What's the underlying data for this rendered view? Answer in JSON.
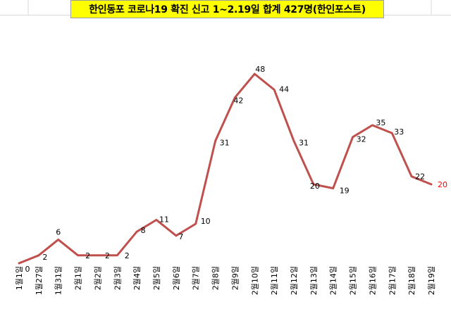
{
  "chart_data": {
    "type": "line",
    "title": "한인동포 코로나19 확진 신고 1~2.19일 합계 427명(한인포스트)",
    "xlabel": "",
    "ylabel": "",
    "ylim": [
      0,
      52
    ],
    "grid": false,
    "legend": "none",
    "categories": [
      "1월1일",
      "1월27일",
      "1월31일",
      "2월1일",
      "2월2일",
      "2월3일",
      "2월4일",
      "2월5일",
      "2월6일",
      "2월7일",
      "2월8일",
      "2월9일",
      "2월10일",
      "2월11일",
      "2월12일",
      "2월13일",
      "2월14일",
      "2월15일",
      "2월16일",
      "2월17일",
      "2월18일",
      "2월19일"
    ],
    "series": [
      {
        "values": [
          0,
          2,
          6,
          2,
          2,
          2,
          8,
          11,
          7,
          10,
          31,
          42,
          48,
          44,
          31,
          20,
          19,
          32,
          35,
          33,
          22,
          20
        ]
      }
    ],
    "colors": {
      "line": "#c0504d",
      "label": "#000000",
      "last_label": "#ff0000",
      "title_bg": "#ffff00"
    }
  }
}
